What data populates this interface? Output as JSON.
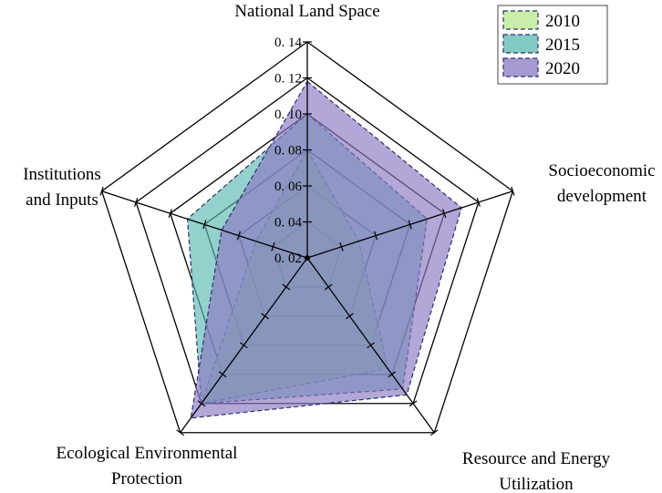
{
  "chart_data": {
    "type": "radar",
    "axes": [
      "National Land Space",
      "Socioeconomic development",
      "Resource and Energy Utilization",
      "Ecological Environmental Protection",
      "Institutions and Inputs"
    ],
    "axis_label_lines": [
      [
        "National Land Space"
      ],
      [
        "Socioeconomic",
        "development"
      ],
      [
        "Resource and Energy",
        "Utilization"
      ],
      [
        "Ecological Environmental",
        "Protection"
      ],
      [
        "Institutions",
        "and Inputs"
      ]
    ],
    "radial_ticks": [
      "0.02",
      "0.04",
      "0.06",
      "0.08",
      "0.10",
      "0.12",
      "0.14"
    ],
    "rlim": [
      0.02,
      0.14
    ],
    "series": [
      {
        "name": "2010",
        "color": "#b7e88a",
        "values": [
          0.08,
          0.05,
          0.096,
          0.12,
          0.05
        ]
      },
      {
        "name": "2015",
        "color": "#5ab8b0",
        "values": [
          0.1,
          0.09,
          0.11,
          0.12,
          0.09
        ]
      },
      {
        "name": "2020",
        "color": "#8a78c2",
        "values": [
          0.118,
          0.11,
          0.114,
          0.13,
          0.07
        ]
      }
    ],
    "legend_position": "top-right",
    "grid": true
  }
}
